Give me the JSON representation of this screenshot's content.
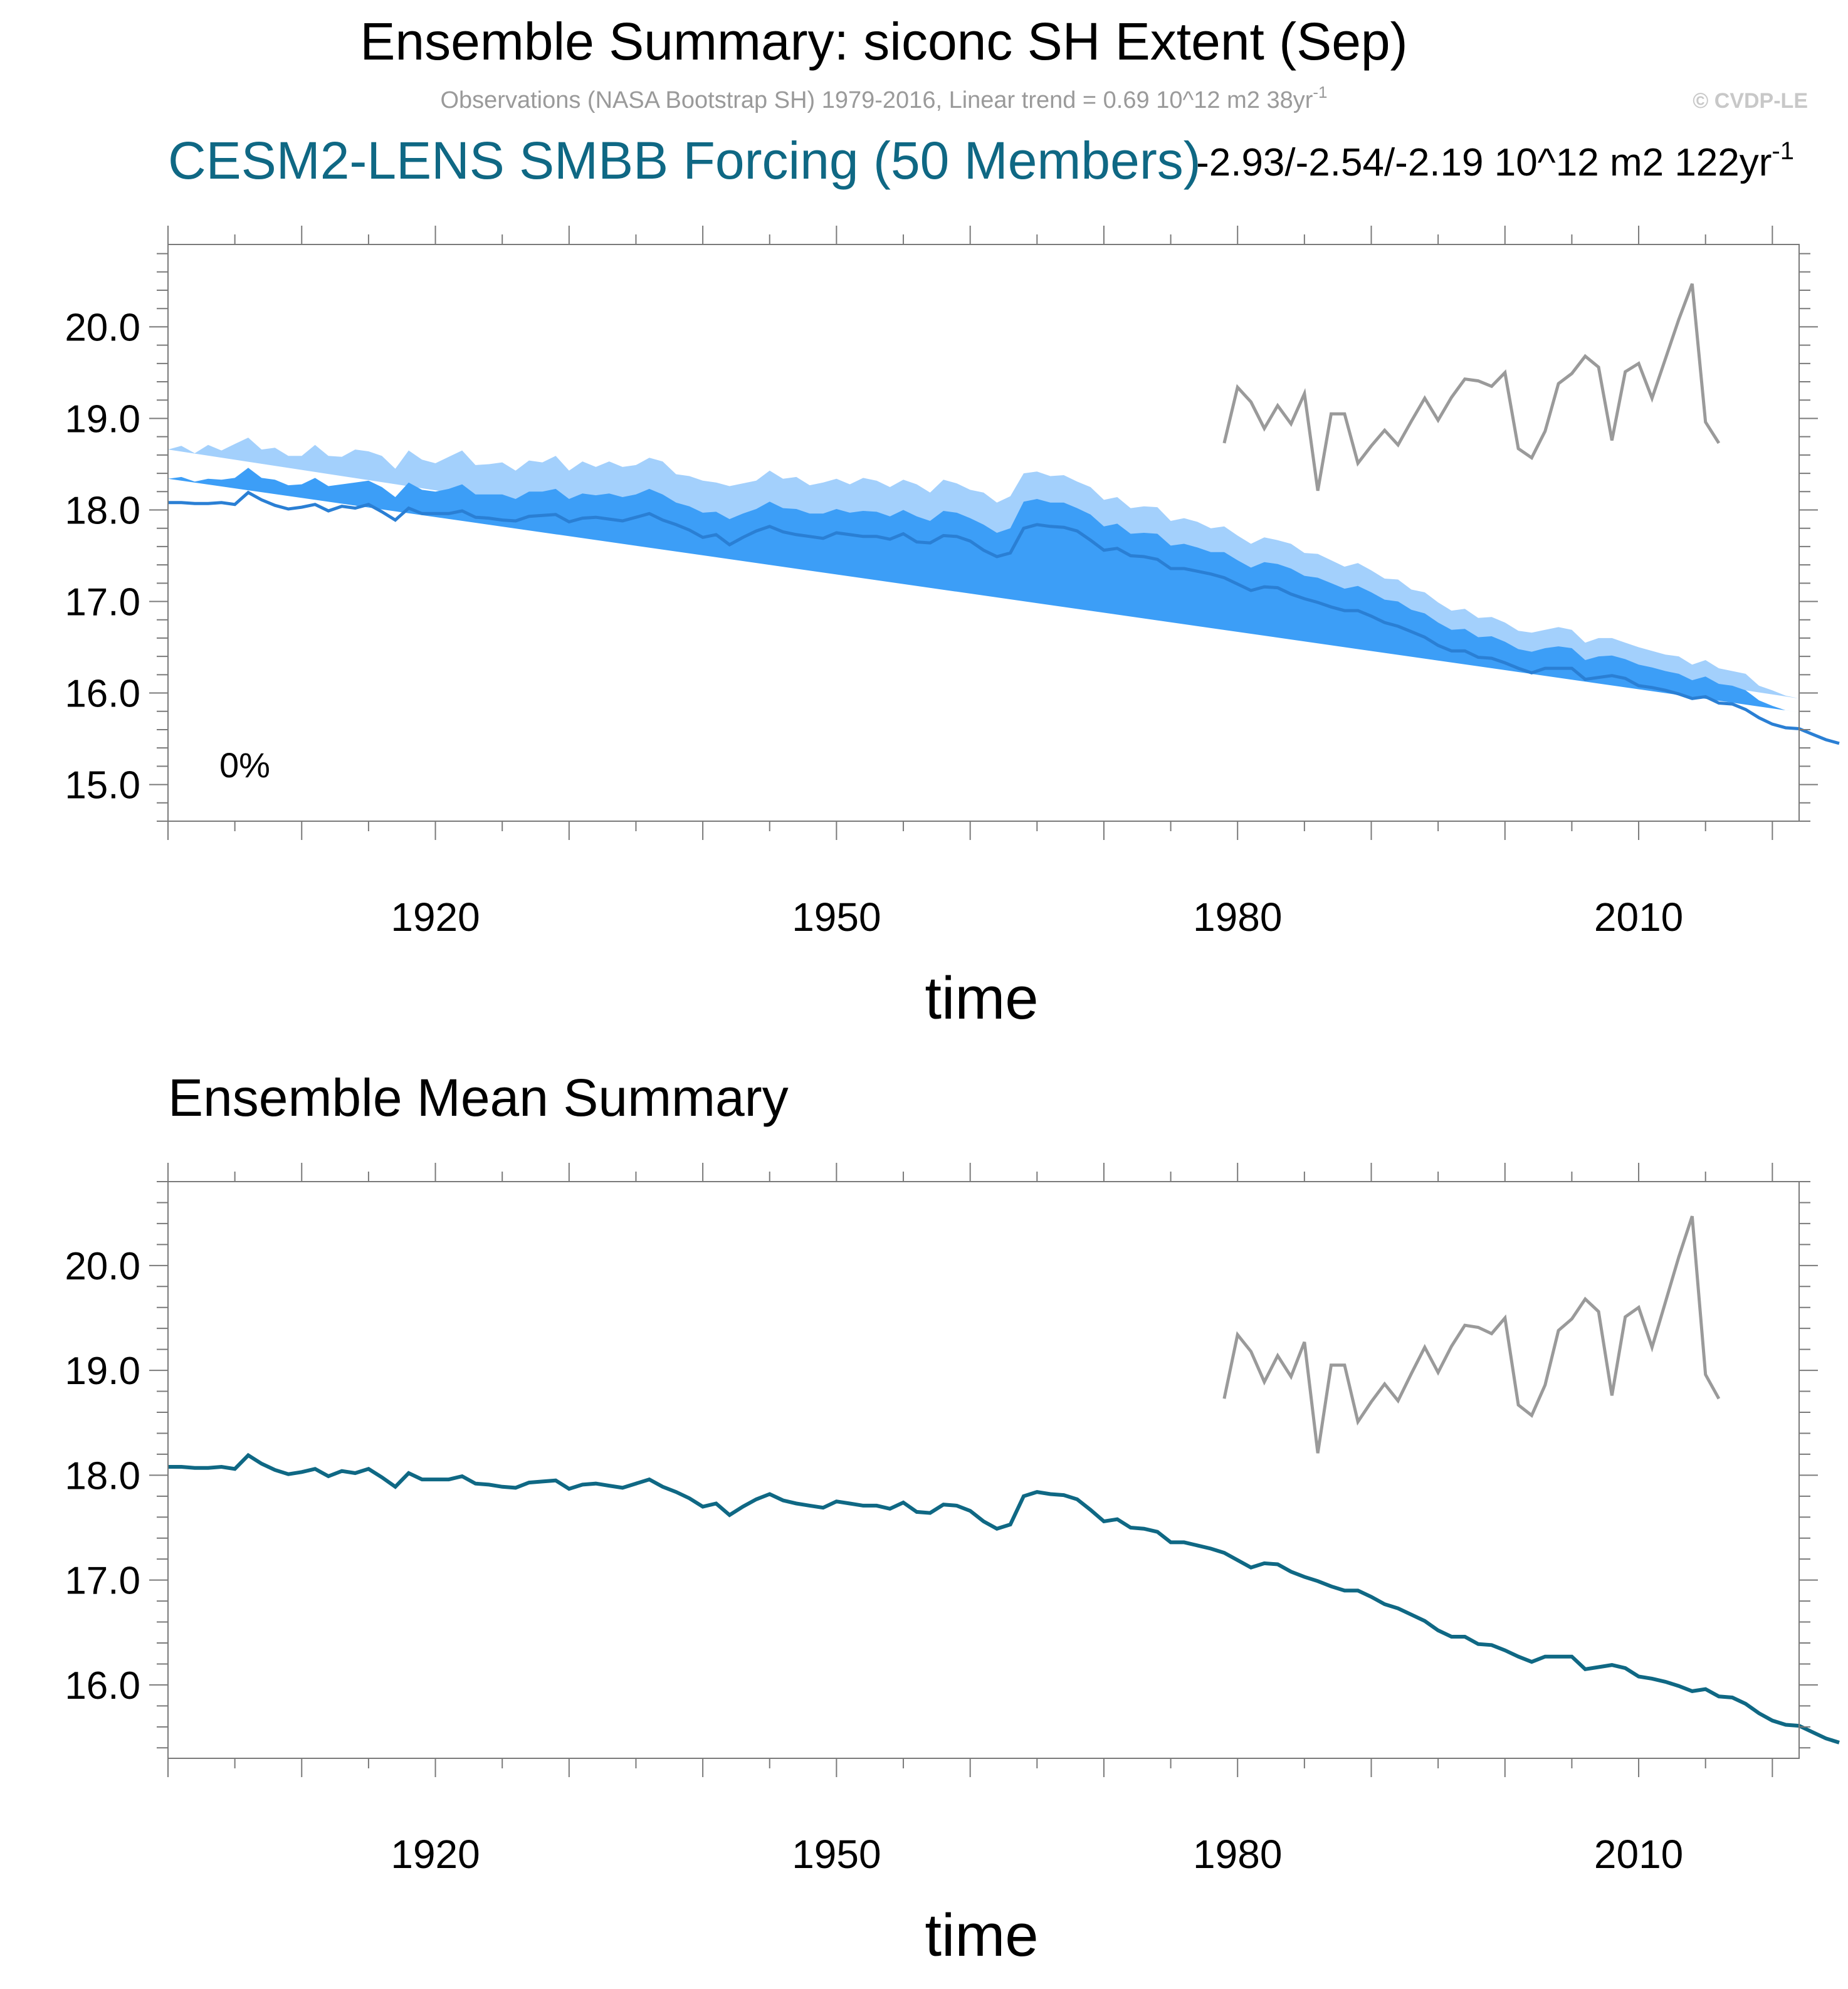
{
  "header": {
    "title": "Ensemble Summary: siconc SH Extent (Sep)",
    "obs_subtitle": "Observations (NASA Bootstrap SH) 1979-2016, Linear trend = 0.69 10^12 m2 38yr",
    "obs_subtitle_sup": "-1",
    "copyright": "© CVDP-LE",
    "model_title": "CESM2-LENS SMBB Forcing (50 Members)",
    "trend_range": "-2.93/-2.54/-2.19 10^12 m2 122yr",
    "trend_range_sup": "-1"
  },
  "colors": {
    "obs_line": "#9a9a9a",
    "mean_line_top": "#2a7fd4",
    "mean_line_bottom": "#0f6884",
    "band_outer": "#a3d0fc",
    "band_inner": "#3c9ef7",
    "model_title": "#0f6884"
  },
  "chart_data": [
    {
      "type": "area",
      "panel": "ensemble-summary",
      "title": "CESM2-LENS SMBB Forcing (50 Members)",
      "xlabel": "time",
      "ylabel": "",
      "xlim": [
        1900,
        2022
      ],
      "ylim": [
        14.6,
        20.9
      ],
      "x_ticks": [
        1920,
        1950,
        1980,
        2010
      ],
      "y_ticks": [
        15.0,
        16.0,
        17.0,
        18.0,
        19.0,
        20.0
      ],
      "y_tick_labels": [
        "15.0",
        "16.0",
        "17.0",
        "18.0",
        "19.0",
        "20.0"
      ],
      "annotation": "0%",
      "grid": false,
      "legend": "none"
    },
    {
      "type": "line",
      "panel": "ensemble-mean-summary",
      "title": "Ensemble Mean Summary",
      "xlabel": "time",
      "ylabel": "",
      "xlim": [
        1900,
        2022
      ],
      "ylim": [
        15.3,
        20.8
      ],
      "x_ticks": [
        1920,
        1950,
        1980,
        2010
      ],
      "y_ticks": [
        16.0,
        17.0,
        18.0,
        19.0,
        20.0
      ],
      "y_tick_labels": [
        "16.0",
        "17.0",
        "18.0",
        "19.0",
        "20.0"
      ],
      "grid": false,
      "legend": "none"
    }
  ],
  "series": {
    "x_start": 1900,
    "ensemble_mean": [
      18.08,
      18.08,
      18.07,
      18.07,
      18.08,
      18.06,
      18.19,
      18.11,
      18.05,
      18.01,
      18.03,
      18.06,
      17.99,
      18.04,
      18.02,
      18.06,
      17.98,
      17.89,
      18.02,
      17.96,
      17.96,
      17.96,
      17.99,
      17.92,
      17.91,
      17.89,
      17.88,
      17.93,
      17.94,
      17.95,
      17.87,
      17.91,
      17.92,
      17.9,
      17.88,
      17.92,
      17.96,
      17.89,
      17.84,
      17.78,
      17.7,
      17.73,
      17.62,
      17.7,
      17.77,
      17.82,
      17.76,
      17.73,
      17.71,
      17.69,
      17.75,
      17.73,
      17.71,
      17.71,
      17.68,
      17.74,
      17.65,
      17.64,
      17.72,
      17.71,
      17.66,
      17.56,
      17.49,
      17.53,
      17.8,
      17.84,
      17.82,
      17.81,
      17.77,
      17.67,
      17.56,
      17.58,
      17.5,
      17.49,
      17.46,
      17.36,
      17.36,
      17.33,
      17.3,
      17.26,
      17.19,
      17.12,
      17.16,
      17.15,
      17.08,
      17.03,
      16.99,
      16.94,
      16.9,
      16.9,
      16.84,
      16.77,
      16.73,
      16.67,
      16.61,
      16.52,
      16.46,
      16.46,
      16.39,
      16.38,
      16.33,
      16.27,
      16.22,
      16.27,
      16.27,
      16.27,
      16.15,
      16.17,
      16.19,
      16.16,
      16.08,
      16.06,
      16.03,
      15.99,
      15.94,
      15.96,
      15.89,
      15.88,
      15.82,
      15.73,
      15.66,
      15.62,
      15.61,
      15.55,
      15.49,
      15.45
    ],
    "inner_spread": [
      0.26,
      0.28,
      0.24,
      0.27,
      0.25,
      0.29,
      0.27,
      0.24,
      0.28,
      0.26,
      0.25,
      0.29,
      0.27,
      0.24,
      0.28,
      0.26,
      0.27,
      0.25,
      0.28,
      0.26,
      0.24,
      0.27,
      0.29,
      0.25,
      0.26,
      0.28,
      0.24,
      0.27,
      0.26,
      0.28,
      0.25,
      0.27,
      0.24,
      0.28,
      0.26,
      0.25,
      0.27,
      0.28,
      0.24,
      0.26,
      0.27,
      0.25,
      0.28,
      0.26,
      0.24,
      0.27,
      0.26,
      0.28,
      0.25,
      0.27,
      0.26,
      0.24,
      0.28,
      0.27,
      0.25,
      0.26,
      0.28,
      0.24,
      0.27,
      0.26,
      0.25,
      0.28,
      0.26,
      0.27,
      0.29,
      0.28,
      0.26,
      0.27,
      0.25,
      0.28,
      0.26,
      0.27,
      0.24,
      0.26,
      0.28,
      0.25,
      0.27,
      0.26,
      0.24,
      0.28,
      0.26,
      0.25,
      0.27,
      0.26,
      0.28,
      0.25,
      0.27,
      0.26,
      0.24,
      0.27,
      0.26,
      0.25,
      0.27,
      0.24,
      0.26,
      0.25,
      0.23,
      0.24,
      0.22,
      0.24,
      0.23,
      0.21,
      0.23,
      0.22,
      0.24,
      0.22,
      0.21,
      0.23,
      0.22,
      0.21,
      0.23,
      0.22,
      0.21,
      0.22,
      0.2,
      0.22,
      0.21,
      0.2,
      0.21,
      0.19,
      0.2,
      0.19,
      0.18
    ],
    "outer_spread": [
      0.58,
      0.62,
      0.55,
      0.64,
      0.57,
      0.66,
      0.6,
      0.55,
      0.63,
      0.58,
      0.56,
      0.65,
      0.6,
      0.54,
      0.64,
      0.58,
      0.61,
      0.56,
      0.63,
      0.59,
      0.55,
      0.62,
      0.66,
      0.57,
      0.59,
      0.63,
      0.55,
      0.61,
      0.58,
      0.64,
      0.56,
      0.62,
      0.55,
      0.63,
      0.59,
      0.57,
      0.61,
      0.64,
      0.55,
      0.59,
      0.62,
      0.57,
      0.64,
      0.59,
      0.55,
      0.61,
      0.58,
      0.63,
      0.56,
      0.61,
      0.59,
      0.55,
      0.64,
      0.61,
      0.57,
      0.59,
      0.63,
      0.55,
      0.61,
      0.58,
      0.56,
      0.63,
      0.59,
      0.62,
      0.6,
      0.58,
      0.55,
      0.57,
      0.54,
      0.58,
      0.55,
      0.56,
      0.52,
      0.55,
      0.57,
      0.52,
      0.55,
      0.54,
      0.5,
      0.56,
      0.53,
      0.51,
      0.54,
      0.52,
      0.55,
      0.5,
      0.53,
      0.51,
      0.48,
      0.52,
      0.5,
      0.48,
      0.51,
      0.46,
      0.49,
      0.47,
      0.44,
      0.46,
      0.43,
      0.45,
      0.44,
      0.41,
      0.44,
      0.42,
      0.45,
      0.42,
      0.4,
      0.43,
      0.41,
      0.39,
      0.42,
      0.4,
      0.39,
      0.41,
      0.37,
      0.4,
      0.38,
      0.36,
      0.39,
      0.35,
      0.37,
      0.35,
      0.33
    ],
    "obs_x_start": 1979,
    "observations": [
      18.73,
      19.34,
      19.18,
      18.89,
      19.14,
      18.94,
      19.27,
      18.21,
      19.05,
      19.05,
      18.51,
      18.7,
      18.87,
      18.71,
      18.97,
      19.22,
      18.98,
      19.23,
      19.43,
      19.41,
      19.35,
      19.5,
      18.67,
      18.57,
      18.86,
      19.38,
      19.49,
      19.68,
      19.56,
      18.76,
      19.51,
      19.6,
      19.22,
      19.65,
      20.08,
      20.47,
      18.96,
      18.73
    ]
  }
}
